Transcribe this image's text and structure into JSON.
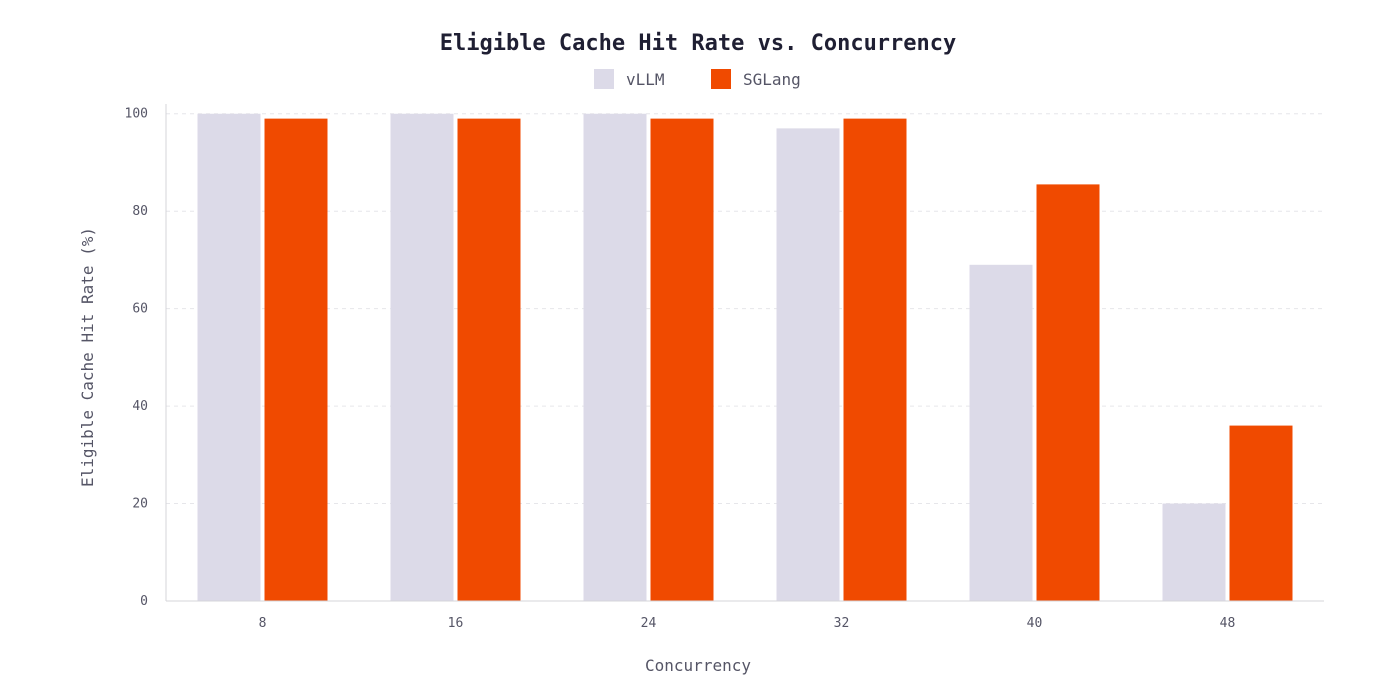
{
  "chart_data": {
    "type": "bar",
    "title": "Eligible Cache Hit Rate vs. Concurrency",
    "xlabel": "Concurrency",
    "ylabel": "Eligible Cache Hit Rate (%)",
    "categories": [
      "8",
      "16",
      "24",
      "32",
      "40",
      "48"
    ],
    "series": [
      {
        "name": "vLLM",
        "color": "#dcdae8",
        "values": [
          100,
          100,
          100,
          97,
          69,
          20
        ]
      },
      {
        "name": "SGLang",
        "color": "#f04a00",
        "values": [
          99,
          99,
          99,
          99,
          85.5,
          36
        ]
      }
    ],
    "yticks": [
      0,
      20,
      40,
      60,
      80,
      100
    ],
    "ylim": [
      0,
      102
    ],
    "grid": true,
    "legend_position": "top-center"
  }
}
